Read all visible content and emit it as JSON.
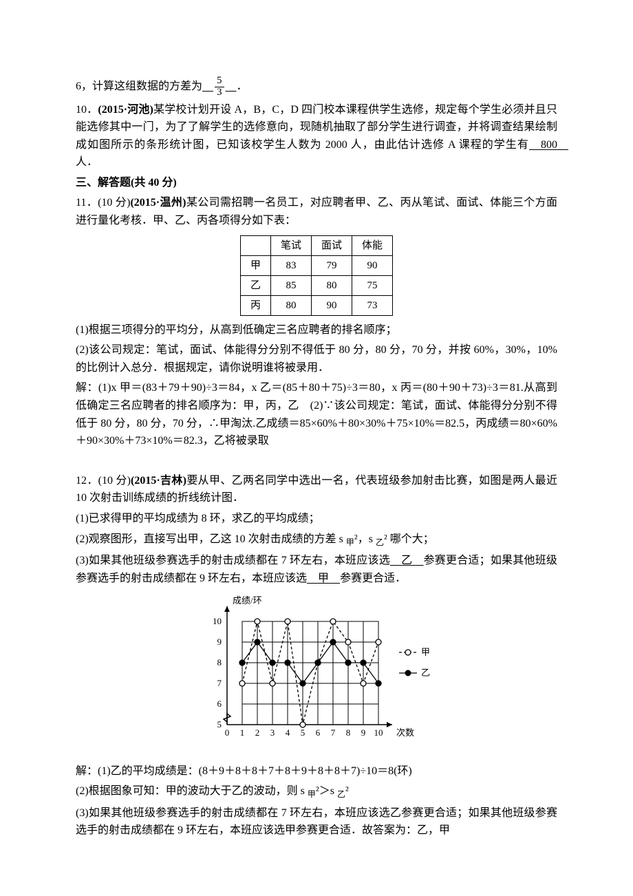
{
  "colors": {
    "text": "#000000",
    "bg": "#ffffff",
    "border": "#000000"
  },
  "q9": {
    "prefix": "6，计算这组数据的方差为",
    "frac_num": "5",
    "frac_den": "3",
    "suffix": "．"
  },
  "q10": {
    "number": "10．",
    "source": "(2015·河池)",
    "body1": "某学校计划开设 A，B，C，D 四门校本课程供学生选修，规定每个学生必须并且只能选修其中一门，为了了解学生的选修意向，现随机抽取了部分学生进行调查，并将调查结果绘制成如图所示的条形统计图，已知该校学生人数为 2000 人，由此估计选修 A 课程的学生有",
    "answer": "800",
    "body2": "人．"
  },
  "section3": "三、解答题(共 40 分)",
  "q11": {
    "number": "11．(10 分)",
    "source": "(2015·温州)",
    "body": "某公司需招聘一名员工，对应聘者甲、乙、丙从笔试、面试、体能三个方面进行量化考核．甲、乙、丙各项得分如下表：",
    "table": {
      "headers": [
        "",
        "笔试",
        "面试",
        "体能"
      ],
      "rows": [
        [
          "甲",
          "83",
          "79",
          "90"
        ],
        [
          "乙",
          "85",
          "80",
          "75"
        ],
        [
          "丙",
          "80",
          "90",
          "73"
        ]
      ]
    },
    "sub1": "(1)根据三项得分的平均分，从高到低确定三名应聘者的排名顺序；",
    "sub2": "(2)该公司规定：笔试，面试、体能得分分别不得低于 80 分，80 分，70 分，并按 60%，30%，10%的比例计入总分．根据规定，请你说明谁将被录用．",
    "ans1": "解：(1)x 甲＝(83＋79＋90)÷3＝84，x 乙＝(85＋80＋75)÷3＝80，x 丙＝(80＋90＋73)÷3＝81.从高到低确定三名应聘者的排名顺序为：甲，丙，乙　(2)∵该公司规定：笔试，面试、体能得分分别不得低于 80 分，80 分，70 分，∴甲淘汰.乙成绩＝85×60%＋80×30%＋75×10%＝82.5，丙成绩＝80×60%＋90×30%＋73×10%＝82.3，乙将被录取"
  },
  "q12": {
    "number": "12．(10 分)",
    "source": "(2015·吉林)",
    "body": "要从甲、乙两名同学中选出一名，代表班级参加射击比赛，如图是两人最近 10 次射击训练成绩的折线统计图．",
    "sub1": "(1)已求得甲的平均成绩为 8 环，求乙的平均成绩；",
    "sub2_a": "(2)观察图形，直接写出甲，乙这 10 次射击成绩的方差 s ",
    "sub2_jia": "甲",
    "sub2_b": "²，s ",
    "sub2_yi": "乙",
    "sub2_c": "² 哪个大；",
    "sub3_a": "(3)如果其他班级参赛选手的射击成绩都在 7 环左右，本班应该选",
    "sub3_ans1": "乙",
    "sub3_b": "参赛更合适；如果其他班级参赛选手的射击成绩都在 9 环左右，本班应该选",
    "sub3_ans2": "甲",
    "sub3_c": "参赛更合适．",
    "ans1": "解：(1)乙的平均成绩是：(8＋9＋8＋8＋7＋8＋9＋8＋8＋7)÷10＝8(环)",
    "ans2_a": "(2)根据图象可知：甲的波动大于乙的波动，则 s ",
    "ans2_jia": "甲",
    "ans2_b": "²＞s ",
    "ans2_yi": "乙",
    "ans2_c": "²",
    "ans3": "(3)如果其他班级参赛选手的射击成绩都在 7 环左右，本班应该选乙参赛更合适；如果其他班级参赛选手的射击成绩都在 9 环左右，本班应该选甲参赛更合适．故答案为：乙，甲",
    "chart": {
      "y_label": "成绩/环",
      "x_label": "次数",
      "y_ticks": [
        "5",
        "6",
        "7",
        "8",
        "9",
        "10"
      ],
      "x_ticks": [
        "0",
        "1",
        "2",
        "3",
        "4",
        "5",
        "6",
        "7",
        "8",
        "9",
        "10"
      ],
      "legend": {
        "jia": "甲",
        "yi": "乙"
      },
      "series_jia": [
        7,
        10,
        7,
        10,
        5,
        8,
        10,
        9,
        7,
        9
      ],
      "series_yi": [
        8,
        9,
        8,
        8,
        7,
        8,
        9,
        8,
        8,
        7
      ],
      "jia_marker": "open-circle",
      "yi_marker": "filled-circle",
      "jia_dash": "4,3",
      "yi_dash": "none",
      "axis_color": "#000000",
      "grid_color": "#000000",
      "bg": "#ffffff"
    }
  }
}
